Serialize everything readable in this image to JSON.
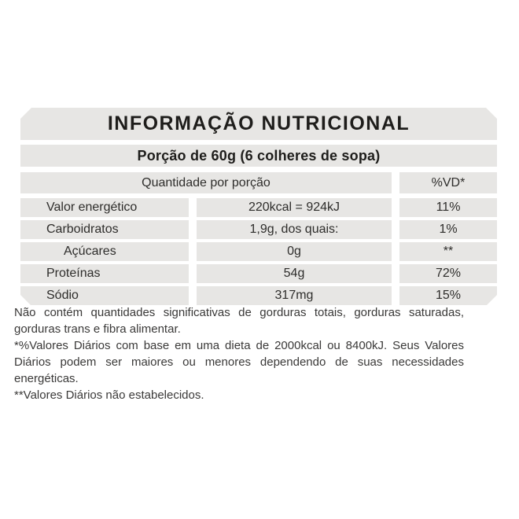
{
  "label": {
    "title": "INFORMAÇÃO NUTRICIONAL",
    "portion": "Porção de 60g (6 colheres de sopa)",
    "columns": {
      "quantity_header": "Quantidade por porção",
      "vd_header": "%VD*"
    },
    "rows": [
      {
        "name": "Valor energético",
        "value": "220kcal = 924kJ",
        "vd": "11%"
      },
      {
        "name": "Carboidratos",
        "value": "1,9g, dos quais:",
        "vd": "1%"
      },
      {
        "name": "Açúcares",
        "value": "0g",
        "vd": "**"
      },
      {
        "name": "Proteínas",
        "value": "54g",
        "vd": "72%"
      },
      {
        "name": "Sódio",
        "value": "317mg",
        "vd": "15%"
      }
    ],
    "footnotes": [
      "Não contém quantidades significativas de gorduras totais, gorduras saturadas, gorduras trans e fibra alimentar.",
      "*%Valores Diários com base em uma dieta de 2000kcal ou 8400kJ. Seus Valores Diários podem ser maiores ou menores dependendo de suas necessidades energéticas.",
      "**Valores Diários não estabelecidos."
    ],
    "colors": {
      "band_gray": "#e7e6e4",
      "title_text": "#1e1d1b",
      "body_text": "#2e2d2b",
      "footnote_text": "#3a3938"
    }
  }
}
